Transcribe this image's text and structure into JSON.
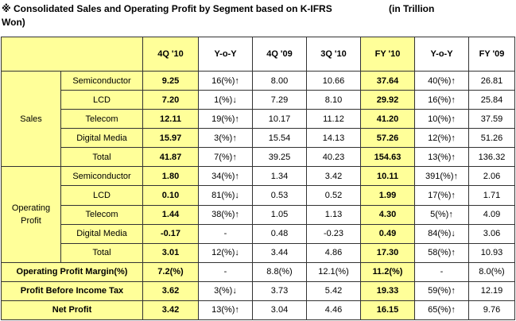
{
  "title": {
    "line1": "※ Consolidated Sales and Operating Profit by Segment based on K-IFRS",
    "unit": "(in Trillion",
    "line2": "Won)"
  },
  "columns": [
    "",
    "",
    "4Q '10",
    "Y-o-Y",
    "4Q '09",
    "3Q '10",
    "FY '10",
    "Y-o-Y",
    "FY '09"
  ],
  "groups": {
    "sales": "Sales",
    "op_line1": "Operating",
    "op_line2": "Profit"
  },
  "sales_rows": [
    {
      "segment": "Semiconductor",
      "v": [
        "9.25",
        "16(%)↑",
        "8.00",
        "10.66",
        "37.64",
        "40(%)↑",
        "26.81"
      ]
    },
    {
      "segment": "LCD",
      "v": [
        "7.20",
        "1(%)↓",
        "7.29",
        "8.10",
        "29.92",
        "16(%)↑",
        "25.84"
      ]
    },
    {
      "segment": "Telecom",
      "v": [
        "12.11",
        "19(%)↑",
        "10.17",
        "11.12",
        "41.20",
        "10(%)↑",
        "37.59"
      ]
    },
    {
      "segment": "Digital Media",
      "v": [
        "15.97",
        "3(%)↑",
        "15.54",
        "14.13",
        "57.26",
        "12(%)↑",
        "51.26"
      ]
    },
    {
      "segment": "Total",
      "v": [
        "41.87",
        "7(%)↑",
        "39.25",
        "40.23",
        "154.63",
        "13(%)↑",
        "136.32"
      ]
    }
  ],
  "op_rows": [
    {
      "segment": "Semiconductor",
      "v": [
        "1.80",
        "34(%)↑",
        "1.34",
        "3.42",
        "10.11",
        "391(%)↑",
        "2.06"
      ]
    },
    {
      "segment": "LCD",
      "v": [
        "0.10",
        "81(%)↓",
        "0.53",
        "0.52",
        "1.99",
        "17(%)↑",
        "1.71"
      ]
    },
    {
      "segment": "Telecom",
      "v": [
        "1.44",
        "38(%)↑",
        "1.05",
        "1.13",
        "4.30",
        "5(%)↑",
        "4.09"
      ]
    },
    {
      "segment": "Digital Media",
      "v": [
        "-0.17",
        "-",
        "0.48",
        "-0.23",
        "0.49",
        "84(%)↓",
        "3.06"
      ]
    },
    {
      "segment": "Total",
      "v": [
        "3.01",
        "12(%)↓",
        "3.44",
        "4.86",
        "17.30",
        "58(%)↑",
        "10.93"
      ]
    }
  ],
  "summary_rows": [
    {
      "label": "Operating Profit Margin(%)",
      "v": [
        "7.2(%)",
        "-",
        "8.8(%)",
        "12.1(%)",
        "11.2(%)",
        "-",
        "8.0(%)"
      ]
    },
    {
      "label": "Profit Before Income Tax",
      "v": [
        "3.62",
        "3(%)↓",
        "3.73",
        "5.42",
        "19.33",
        "59(%)↑",
        "12.19"
      ]
    },
    {
      "label": "Net Profit",
      "v": [
        "3.42",
        "13(%)↑",
        "3.04",
        "4.46",
        "16.15",
        "65(%)↑",
        "9.76"
      ]
    }
  ],
  "colors": {
    "highlight": "#ffff99",
    "border": "#333333"
  }
}
